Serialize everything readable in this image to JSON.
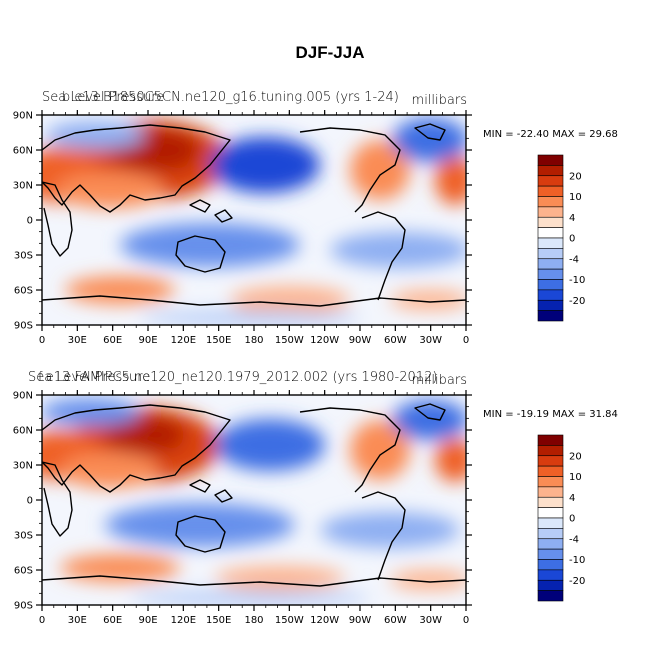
{
  "page_title": "DJF-JJA",
  "panels": [
    {
      "title_left": "Sea Level Pressure",
      "title_overlay": "b.e13.B1850C5CN.ne120_g16.tuning.005 (yrs 1-24)",
      "units": "millibars",
      "stats": "MIN = -22.40 MAX =  29.68"
    },
    {
      "title_left": "Sea Level Pressure",
      "title_overlay": "f.e13.FAMIPC5.ne120_ne120.1979_2012.002 (yrs 1980-2012)",
      "units": "millibars",
      "stats": "MIN = -19.19 MAX =  31.84"
    }
  ],
  "chart_data": [
    {
      "type": "heatmap",
      "title": "DJF-JJA",
      "subtitle": "b.e13.B1850C5CN.ne120_g16.tuning.005 (yrs 1-24)",
      "variable": "Sea Level Pressure",
      "units": "millibars",
      "min": -22.4,
      "max": 29.68,
      "xlim": [
        0,
        360
      ],
      "ylim": [
        -90,
        90
      ],
      "x_tick_labels": [
        "0",
        "30E",
        "60E",
        "90E",
        "120E",
        "150E",
        "180",
        "150W",
        "120W",
        "90W",
        "60W",
        "30W",
        "0"
      ],
      "y_tick_labels": [
        "90N",
        "60N",
        "30N",
        "0",
        "30S",
        "60S",
        "90S"
      ],
      "colorbar_labels": [
        "20",
        "10",
        "4",
        "0",
        "-4",
        "-10",
        "-20"
      ]
    },
    {
      "type": "heatmap",
      "title": "DJF-JJA",
      "subtitle": "f.e13.FAMIPC5.ne120_ne120.1979_2012.002 (yrs 1980-2012)",
      "variable": "Sea Level Pressure",
      "units": "millibars",
      "min": -19.19,
      "max": 31.84,
      "xlim": [
        0,
        360
      ],
      "ylim": [
        -90,
        90
      ],
      "x_tick_labels": [
        "0",
        "30E",
        "60E",
        "90E",
        "120E",
        "150E",
        "180",
        "150W",
        "120W",
        "90W",
        "60W",
        "30W",
        "0"
      ],
      "y_tick_labels": [
        "90N",
        "60N",
        "30N",
        "0",
        "30S",
        "60S",
        "90S"
      ],
      "colorbar_labels": [
        "20",
        "10",
        "4",
        "0",
        "-4",
        "-10",
        "-20"
      ]
    }
  ],
  "colorbar_colors": [
    "#7f0000",
    "#b21e00",
    "#d83c0f",
    "#ef6027",
    "#fa8c55",
    "#fdb38d",
    "#fde0cb",
    "#ffffff",
    "#dbe8fb",
    "#b7cdf7",
    "#8eaff2",
    "#6690ec",
    "#3d6ee3",
    "#1a47d6",
    "#0522b0",
    "#00007a"
  ],
  "colors": {
    "strong_positive": "#c8280a",
    "positive": "#f28a5c",
    "weak_positive": "#fcd3bc",
    "weak_negative": "#c8d9f8",
    "negative": "#7aa0ee",
    "strong_negative": "#1f4fd8",
    "land_outline": "#000000"
  }
}
